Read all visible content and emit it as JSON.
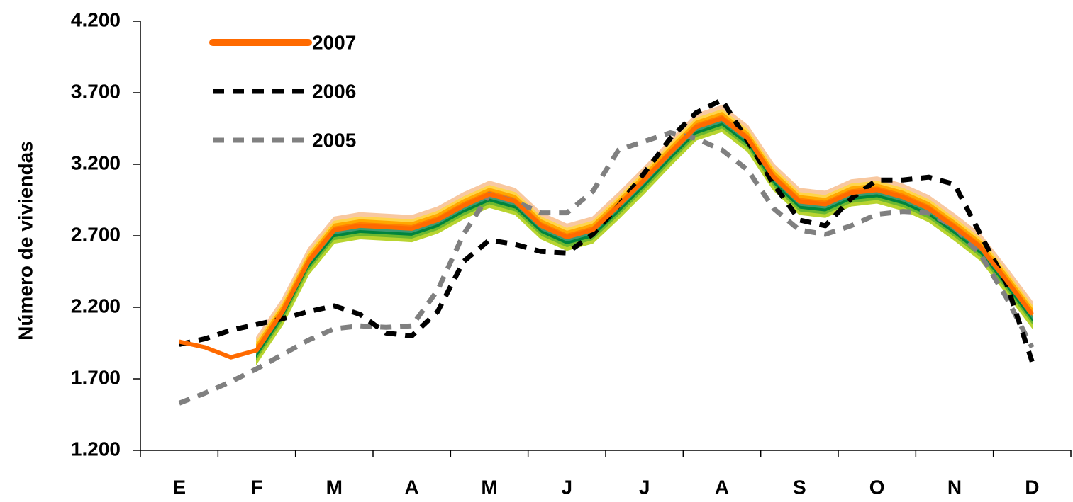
{
  "chart_data": {
    "type": "line",
    "y_label": "Número de viviendas",
    "categories": [
      null,
      "E",
      null,
      null,
      "F",
      null,
      null,
      "M",
      null,
      null,
      "A",
      null,
      null,
      "M",
      null,
      null,
      "J",
      null,
      null,
      "J",
      null,
      null,
      "A",
      null,
      null,
      "S",
      null,
      null,
      "O",
      null,
      null,
      "N",
      null,
      null,
      "D",
      null
    ],
    "series": [
      {
        "name": "2007",
        "color": "#ff6a00",
        "linestyle": "solid",
        "values": [
          null,
          1960,
          1920,
          1850,
          1900,
          2170,
          2520,
          2740,
          2770,
          2760,
          2750,
          2810,
          2910,
          2990,
          2940,
          2770,
          2690,
          2740,
          2910,
          3090,
          3280,
          3460,
          3520,
          3380,
          3110,
          2940,
          2920,
          3000,
          3020,
          2970,
          2890,
          2760,
          2620,
          2390,
          2150,
          null
        ]
      },
      {
        "name": "2006",
        "color": "#000000",
        "linestyle": "dashed",
        "values": [
          null,
          1940,
          1980,
          2040,
          2080,
          2120,
          2170,
          2210,
          2150,
          2020,
          2000,
          2170,
          2520,
          2670,
          2640,
          2590,
          2580,
          2710,
          2910,
          3140,
          3380,
          3560,
          3650,
          3360,
          3060,
          2810,
          2770,
          2960,
          3090,
          3090,
          3110,
          3060,
          2710,
          2370,
          1820,
          null
        ]
      },
      {
        "name": "2005",
        "color": "#808080",
        "linestyle": "dashed",
        "values": [
          null,
          1530,
          1600,
          1680,
          1770,
          1870,
          1970,
          2050,
          2070,
          2060,
          2070,
          2320,
          2710,
          2990,
          2940,
          2860,
          2860,
          3010,
          3300,
          3360,
          3420,
          3380,
          3300,
          3160,
          2890,
          2740,
          2710,
          2770,
          2850,
          2870,
          2860,
          2760,
          2570,
          2270,
          1920,
          null
        ]
      }
    ],
    "fan_start": 4,
    "fan": [
      {
        "color": "#f8c8a0",
        "low": 60,
        "high": 90
      },
      {
        "color": "#ffd54a",
        "low": 40,
        "high": 60
      },
      {
        "color": "#ffa800",
        "low": 20,
        "high": 40
      },
      {
        "color": "#ff7f00",
        "low": -15,
        "high": 20
      },
      {
        "color": "#3a9b72",
        "low": -35,
        "high": -15
      },
      {
        "color": "#00843d",
        "low": -55,
        "high": -35
      },
      {
        "color": "#6cb82f",
        "low": -75,
        "high": -55
      },
      {
        "color": "#b8d430",
        "low": -90,
        "high": -75
      }
    ],
    "ylim": [
      1200,
      4200
    ],
    "yticks": [
      {
        "value": 1200,
        "label": "1.200"
      },
      {
        "value": 1700,
        "label": "1.700"
      },
      {
        "value": 2200,
        "label": "2.200"
      },
      {
        "value": 2700,
        "label": "2.700"
      },
      {
        "value": 3200,
        "label": "3.200"
      },
      {
        "value": 3700,
        "label": "3.700"
      },
      {
        "value": 4200,
        "label": "4.200"
      }
    ],
    "legend": "upper left"
  }
}
